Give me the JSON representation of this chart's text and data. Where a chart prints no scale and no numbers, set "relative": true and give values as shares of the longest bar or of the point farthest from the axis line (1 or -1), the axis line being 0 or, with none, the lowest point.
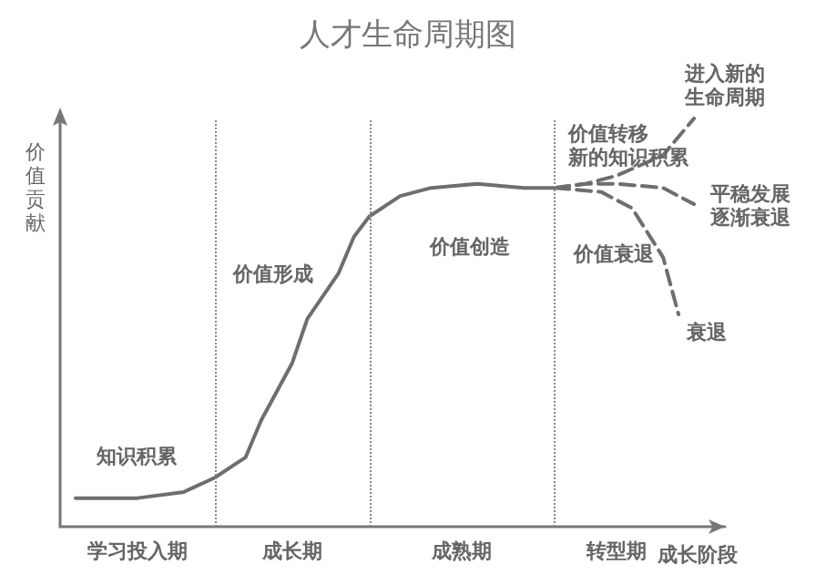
{
  "chart_data": {
    "type": "line",
    "title": "人才生命周期图",
    "xlabel": "成长阶段",
    "ylabel": "价值贡献",
    "relative": true,
    "categories": [
      null,
      null,
      null,
      null,
      null,
      "学习投入期",
      null,
      null,
      null,
      null,
      null,
      null,
      null,
      null,
      null,
      "成长期",
      null,
      null,
      null,
      null,
      null,
      null,
      null,
      null,
      null,
      null,
      "成熟期",
      null,
      null,
      null,
      null,
      null,
      null,
      null,
      null,
      null,
      "转型期",
      null,
      null,
      null,
      null,
      null,
      null,
      null
    ],
    "marker": "none",
    "series": [
      {
        "color": "#6e6e6e",
        "line_style": "solid",
        "values": [
          null,
          0.07,
          null,
          0.07,
          null,
          0.07,
          null,
          null,
          0.085,
          null,
          0.12,
          null,
          0.17,
          0.26,
          null,
          0.4,
          0.51,
          null,
          0.62,
          0.71,
          0.76,
          null,
          0.81,
          null,
          0.83,
          null,
          null,
          0.84,
          null,
          null,
          0.83,
          null,
          0.83,
          null,
          null,
          null,
          null,
          null,
          null,
          null,
          null,
          null,
          null,
          null
        ]
      },
      {
        "color": "#6e6e6e",
        "line_style": "dashed",
        "values": [
          null,
          null,
          null,
          null,
          null,
          null,
          null,
          null,
          null,
          null,
          null,
          null,
          null,
          null,
          null,
          null,
          null,
          null,
          null,
          null,
          null,
          null,
          null,
          null,
          null,
          null,
          null,
          null,
          null,
          null,
          null,
          null,
          0.83,
          null,
          0.84,
          null,
          0.86,
          null,
          null,
          0.91,
          null,
          1,
          null,
          null
        ]
      },
      {
        "color": "#6e6e6e",
        "line_style": "dashed",
        "values": [
          null,
          null,
          null,
          null,
          null,
          null,
          null,
          null,
          null,
          null,
          null,
          null,
          null,
          null,
          null,
          null,
          null,
          null,
          null,
          null,
          null,
          null,
          null,
          null,
          null,
          null,
          null,
          null,
          null,
          null,
          null,
          null,
          0.83,
          null,
          0.84,
          null,
          0.84,
          null,
          null,
          0.83,
          null,
          0.79,
          null,
          null
        ]
      },
      {
        "color": "#6e6e6e",
        "line_style": "dashed",
        "values": [
          null,
          null,
          null,
          null,
          null,
          null,
          null,
          null,
          null,
          null,
          null,
          null,
          null,
          null,
          null,
          null,
          null,
          null,
          null,
          null,
          null,
          null,
          null,
          null,
          null,
          null,
          null,
          null,
          null,
          null,
          null,
          null,
          0.83,
          null,
          null,
          0.82,
          null,
          0.78,
          null,
          0.66,
          0.52,
          null,
          null,
          null
        ]
      }
    ],
    "annotations": [
      "知识积累",
      "价值形成",
      "价值创造",
      "价值衰退",
      "价值转移新的知识积累",
      "进入新的生命周期",
      "平稳发展逐渐衰退",
      "衰退"
    ]
  }
}
